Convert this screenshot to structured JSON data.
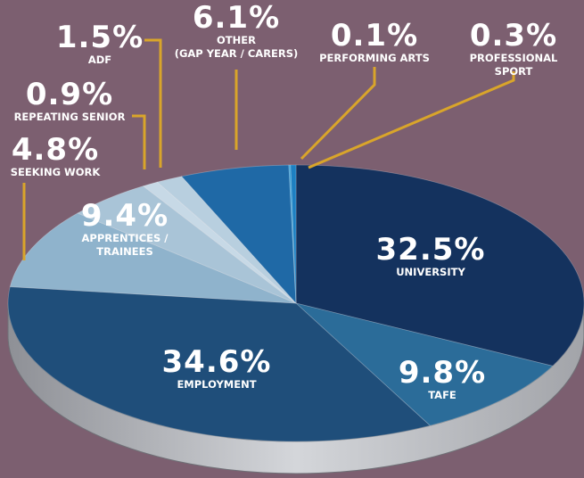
{
  "chart_data": {
    "type": "pie",
    "categories": [
      "UNIVERSITY",
      "TAFE",
      "EMPLOYMENT",
      "APPRENTICES /\nTRAINEES",
      "SEEKING WORK",
      "REPEATING SENIOR",
      "ADF",
      "OTHER\n(GAP YEAR / CARERS)",
      "PERFORMING ARTS",
      "PROFESSIONAL SPORT"
    ],
    "values": [
      32.5,
      9.8,
      34.6,
      9.4,
      4.8,
      0.9,
      1.5,
      6.1,
      0.1,
      0.3
    ],
    "value_labels": [
      "32.5%",
      "9.8%",
      "34.6%",
      "9.4%",
      "4.8%",
      "0.9%",
      "1.5%",
      "6.1%",
      "0.1%",
      "0.3%"
    ],
    "colors": [
      "#14325e",
      "#2b6c99",
      "#1f4e7a",
      "#8fb3cc",
      "#a9c4d7",
      "#c7d9e6",
      "#b8cfdf",
      "#1f69a6",
      "#3aa2da",
      "#1d80c2"
    ]
  }
}
